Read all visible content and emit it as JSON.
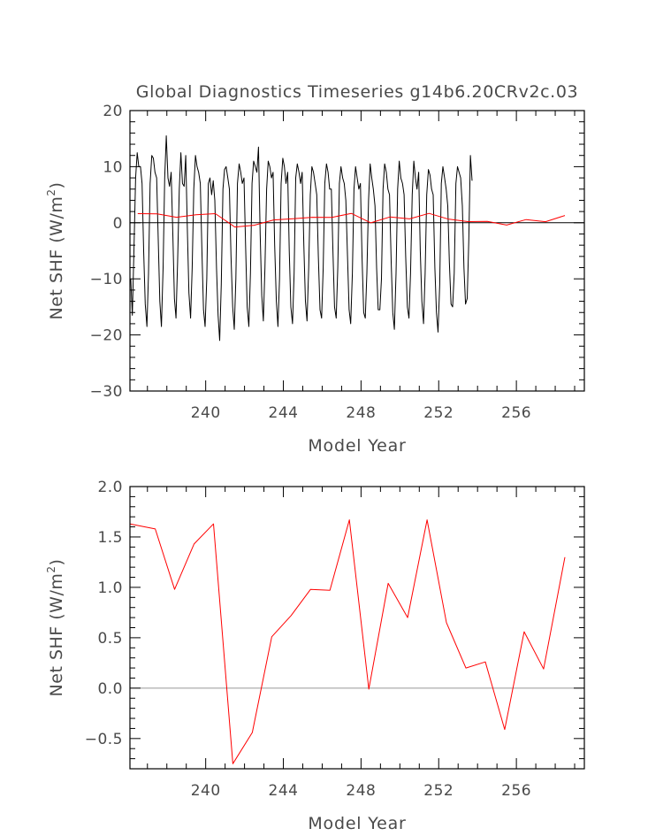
{
  "title": "Global Diagnostics Timeseries g14b6.20CRv2c.03",
  "chart_data": [
    {
      "type": "line",
      "xlabel": "Model Year",
      "ylabel_main": "Net SHF (W/m",
      "ylabel_sup": "2",
      "ylabel_end": ")",
      "xlim": [
        236.1,
        259.5
      ],
      "ylim": [
        -30,
        20
      ],
      "xticks": [
        240,
        244,
        248,
        252,
        256
      ],
      "xtick_labels": [
        "240",
        "244",
        "248",
        "252",
        "256"
      ],
      "yticks": [
        -30,
        -20,
        -10,
        0,
        10,
        20
      ],
      "ytick_labels": [
        "−30",
        "−20",
        "−10",
        "0",
        "10",
        "20"
      ],
      "zero_line_color": "#000000",
      "series": [
        {
          "color": "#000000",
          "style": "monthly",
          "start": 236.14,
          "step": 0.0833,
          "values": [
            -10,
            -16.5,
            -5,
            8,
            12.5,
            10,
            10,
            7,
            -5,
            -14.5,
            -18.5,
            -9,
            7,
            12,
            11.5,
            9,
            8,
            -3,
            -14,
            -18.5,
            -8,
            8,
            15.5,
            8,
            6.5,
            9,
            -2,
            -13.5,
            -17,
            -7,
            6,
            12.5,
            7,
            6.5,
            12,
            -1,
            -12.5,
            -17,
            -8,
            6,
            12,
            10,
            9,
            7,
            -5,
            -15.5,
            -18.5,
            -10,
            7,
            8,
            5,
            7.5,
            4,
            -8,
            -16.5,
            -21,
            -11,
            6,
            9.5,
            10,
            8,
            6,
            -6,
            -15,
            -19,
            -10,
            7,
            10.5,
            9,
            7,
            8,
            -4,
            -15,
            -18.5,
            -9,
            7,
            11,
            10,
            9,
            13.5,
            -2,
            -13,
            -17.5,
            -8,
            6,
            11,
            10,
            8,
            9,
            -4,
            -14,
            -18.5,
            -10,
            7,
            11.5,
            10,
            7,
            9,
            -5,
            -15,
            -18,
            -9,
            8,
            10.5,
            9,
            7,
            9,
            -4,
            -14,
            -17.5,
            -8,
            5,
            10,
            9,
            7,
            5,
            -6,
            -15.5,
            -17,
            -8,
            7,
            10.5,
            9,
            6,
            6,
            -5,
            -15,
            -17,
            -8,
            7,
            10,
            8,
            7,
            4,
            -6,
            -15.5,
            -18,
            -9,
            6,
            10,
            8,
            6,
            7,
            -6,
            -16,
            -17,
            -9,
            4,
            10.5,
            8,
            6,
            3,
            -8,
            -15.5,
            -15.5,
            -10,
            6,
            10.5,
            9,
            6,
            5,
            -7,
            -16,
            -19,
            -9,
            6,
            11,
            8,
            7,
            5,
            -6,
            -15,
            -17,
            -9,
            5,
            11,
            8,
            6,
            9,
            -5,
            -14,
            -18,
            -9,
            5,
            9.5,
            8.5,
            6,
            5,
            -8,
            -16,
            -19.5,
            -11,
            7,
            10,
            8,
            6,
            3,
            -7,
            -14.5,
            -15,
            -9,
            7,
            10,
            9,
            8,
            3,
            -8,
            -14.5,
            -13.5,
            -3,
            12,
            7.5
          ]
        },
        {
          "color": "#ff0000",
          "style": "annual",
          "x": [
            236.5,
            237.5,
            238.5,
            239.5,
            240.5,
            241.5,
            242.5,
            243.5,
            244.5,
            245.5,
            246.5,
            247.5,
            248.5,
            249.5,
            250.5,
            251.5,
            252.5,
            253.5,
            254.5,
            255.5,
            256.5,
            257.5,
            258.5
          ],
          "values": [
            1.62,
            1.58,
            0.98,
            1.43,
            1.63,
            -0.75,
            -0.44,
            0.51,
            0.72,
            0.98,
            0.97,
            1.67,
            -0.01,
            1.04,
            0.7,
            1.67,
            0.65,
            0.2,
            0.26,
            -0.41,
            0.56,
            0.19,
            1.3
          ]
        }
      ]
    },
    {
      "type": "line",
      "xlabel": "Model Year",
      "ylabel_main": "Net SHF (W/m",
      "ylabel_sup": "2",
      "ylabel_end": ")",
      "xlim": [
        236.1,
        259.5
      ],
      "ylim": [
        -0.8,
        2.0
      ],
      "xticks": [
        240,
        244,
        248,
        252,
        256
      ],
      "xtick_labels": [
        "240",
        "244",
        "248",
        "252",
        "256"
      ],
      "yticks": [
        -0.5,
        0.0,
        0.5,
        1.0,
        1.5,
        2.0
      ],
      "ytick_labels": [
        "−0.5",
        "0.0",
        "0.5",
        "1.0",
        "1.5",
        "2.0"
      ],
      "zero_line_color": "#999999",
      "series": [
        {
          "color": "#ff0000",
          "style": "annual",
          "x": [
            236.1,
            237.4,
            238.4,
            239.4,
            240.4,
            241.4,
            242.4,
            243.4,
            244.4,
            245.4,
            246.4,
            247.4,
            248.4,
            249.4,
            250.4,
            251.4,
            252.4,
            253.4,
            254.4,
            255.4,
            256.4,
            257.4,
            258.5
          ],
          "values": [
            1.63,
            1.58,
            0.98,
            1.43,
            1.63,
            -0.75,
            -0.44,
            0.51,
            0.72,
            0.98,
            0.97,
            1.67,
            -0.01,
            1.04,
            0.7,
            1.67,
            0.65,
            0.2,
            0.26,
            -0.41,
            0.56,
            0.19,
            1.3
          ]
        }
      ]
    }
  ]
}
